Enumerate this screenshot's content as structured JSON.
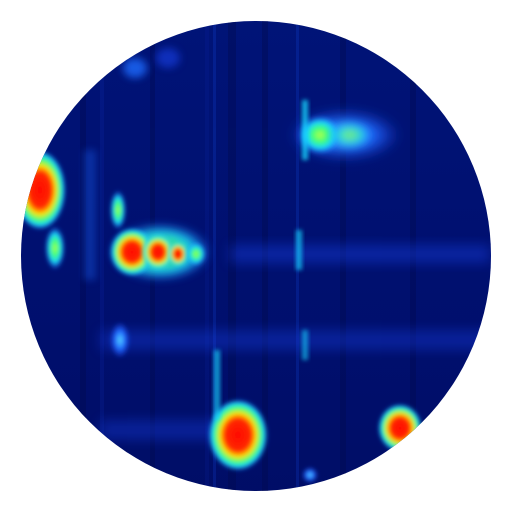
{
  "icon": {
    "name": "spectrogram-app-icon",
    "shape": "circle",
    "colors": {
      "background": "#ffffff",
      "base": "#00106e",
      "deep": "#000a4a",
      "blue": "#1f4cff",
      "cyan": "#19d6ff",
      "green": "#3dff7a",
      "yellow": "#ffe600",
      "orange": "#ff7a00",
      "red": "#ff0a00"
    }
  }
}
